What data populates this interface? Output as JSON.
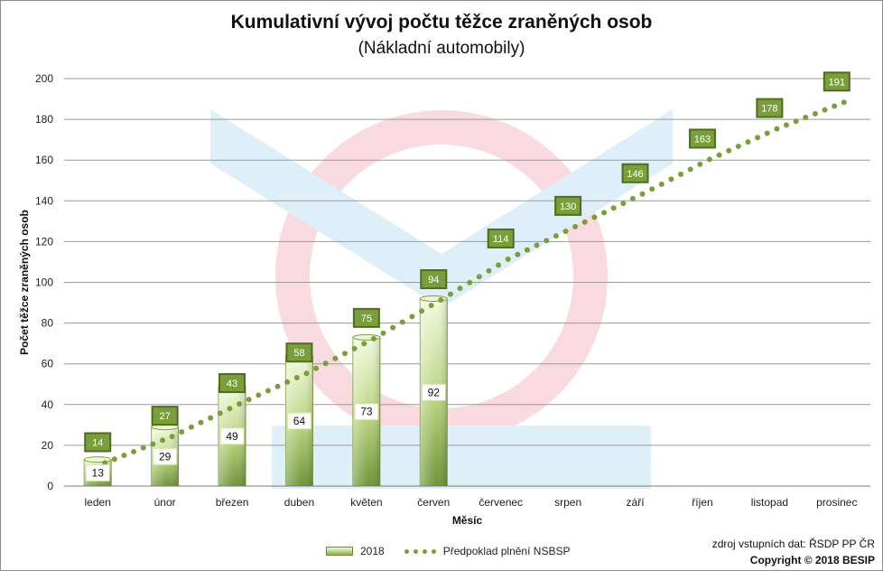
{
  "chart_data": {
    "type": "bar",
    "title": "Kumulativní vývoj počtu těžce zraněných osob",
    "subtitle": "(Nákladní automobily)",
    "xlabel": "Měsíc",
    "ylabel": "Počet těžce zraněných osob",
    "ylim": [
      0,
      200
    ],
    "yticks": [
      0,
      20,
      40,
      60,
      80,
      100,
      120,
      140,
      160,
      180,
      200
    ],
    "categories": [
      "leden",
      "únor",
      "březen",
      "duben",
      "květen",
      "červen",
      "červenec",
      "srpen",
      "září",
      "říjen",
      "listopad",
      "prosinec"
    ],
    "series": [
      {
        "name": "2018",
        "type": "bar",
        "values": [
          13,
          29,
          49,
          64,
          73,
          92,
          null,
          null,
          null,
          null,
          null,
          null
        ]
      },
      {
        "name": "Předpoklad plnění NSBSP",
        "type": "line",
        "values": [
          14,
          27,
          43,
          58,
          75,
          94,
          114,
          130,
          146,
          163,
          178,
          191
        ]
      }
    ],
    "gridlines": true,
    "legend_position": "bottom"
  },
  "source_text": "zdroj vstupních dat: ŘSDP PP ČR",
  "copyright_text": "Copyright © 2018 BESIP",
  "colors": {
    "bar_light": "#f2fadd",
    "bar_dark": "#6f9437",
    "label_green": "#7a9f3a",
    "label_border": "#4f6c22",
    "dots": "#7a9f3a"
  }
}
